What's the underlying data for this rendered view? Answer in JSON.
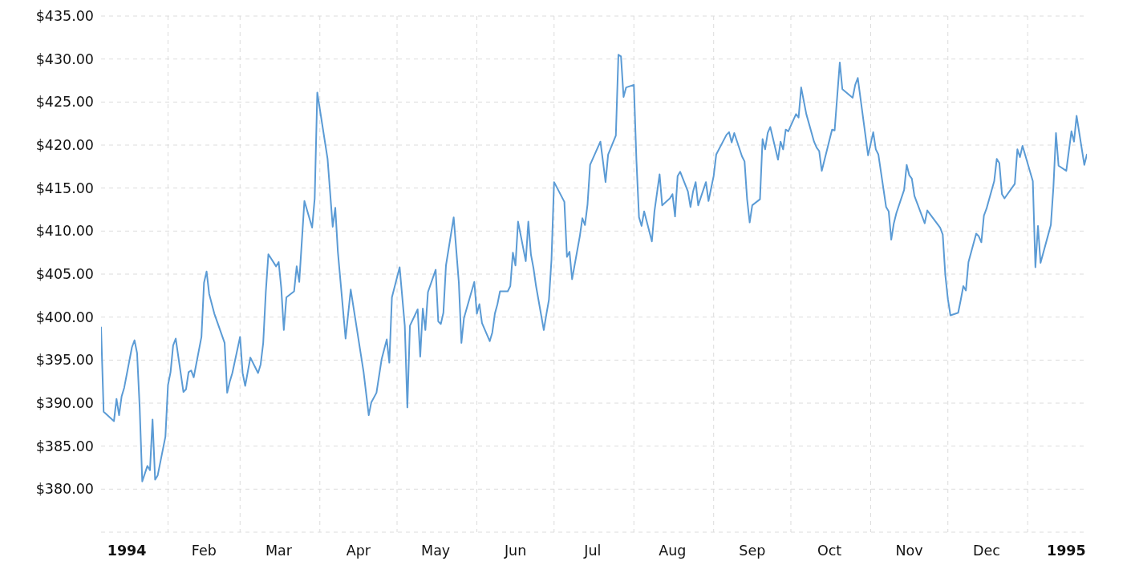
{
  "chart_data": {
    "type": "line",
    "x": [
      "1994-01-06",
      "1994-01-07",
      "1994-01-11",
      "1994-01-12",
      "1994-01-13",
      "1994-01-14",
      "1994-01-15",
      "1994-01-18",
      "1994-01-19",
      "1994-01-20",
      "1994-01-21",
      "1994-01-22",
      "1994-01-24",
      "1994-01-25",
      "1994-01-26",
      "1994-01-27",
      "1994-01-28",
      "1994-01-31",
      "1994-02-01",
      "1994-02-02",
      "1994-02-03",
      "1994-02-04",
      "1994-02-07",
      "1994-02-08",
      "1994-02-09",
      "1994-02-10",
      "1994-02-11",
      "1994-02-14",
      "1994-02-15",
      "1994-02-16",
      "1994-02-17",
      "1994-02-19",
      "1994-02-23",
      "1994-02-24",
      "1994-02-25",
      "1994-02-26",
      "1994-03-01",
      "1994-03-02",
      "1994-03-03",
      "1994-03-05",
      "1994-03-08",
      "1994-03-09",
      "1994-03-10",
      "1994-03-11",
      "1994-03-12",
      "1994-03-15",
      "1994-03-16",
      "1994-03-17",
      "1994-03-18",
      "1994-03-19",
      "1994-03-22",
      "1994-03-23",
      "1994-03-24",
      "1994-03-26",
      "1994-03-29",
      "1994-03-30",
      "1994-03-31",
      "1994-04-04",
      "1994-04-06",
      "1994-04-07",
      "1994-04-08",
      "1994-04-11",
      "1994-04-13",
      "1994-04-18",
      "1994-04-20",
      "1994-04-21",
      "1994-04-23",
      "1994-04-25",
      "1994-04-27",
      "1994-04-28",
      "1994-04-29",
      "1994-05-02",
      "1994-05-04",
      "1994-05-05",
      "1994-05-06",
      "1994-05-09",
      "1994-05-10",
      "1994-05-11",
      "1994-05-12",
      "1994-05-13",
      "1994-05-16",
      "1994-05-17",
      "1994-05-18",
      "1994-05-19",
      "1994-05-20",
      "1994-05-23",
      "1994-05-24",
      "1994-05-25",
      "1994-05-26",
      "1994-05-27",
      "1994-05-31",
      "1994-06-01",
      "1994-06-02",
      "1994-06-03",
      "1994-06-06",
      "1994-06-07",
      "1994-06-08",
      "1994-06-09",
      "1994-06-10",
      "1994-06-13",
      "1994-06-14",
      "1994-06-15",
      "1994-06-16",
      "1994-06-17",
      "1994-06-20",
      "1994-06-21",
      "1994-06-22",
      "1994-06-23",
      "1994-06-24",
      "1994-06-27",
      "1994-06-28",
      "1994-06-29",
      "1994-06-30",
      "1994-07-01",
      "1994-07-05",
      "1994-07-06",
      "1994-07-07",
      "1994-07-08",
      "1994-07-11",
      "1994-07-12",
      "1994-07-13",
      "1994-07-14",
      "1994-07-15",
      "1994-07-19",
      "1994-07-20",
      "1994-07-21",
      "1994-07-22",
      "1994-07-25",
      "1994-07-26",
      "1994-07-27",
      "1994-07-28",
      "1994-07-29",
      "1994-08-01",
      "1994-08-02",
      "1994-08-03",
      "1994-08-04",
      "1994-08-05",
      "1994-08-08",
      "1994-08-09",
      "1994-08-11",
      "1994-08-12",
      "1994-08-15",
      "1994-08-16",
      "1994-08-17",
      "1994-08-18",
      "1994-08-19",
      "1994-08-22",
      "1994-08-23",
      "1994-08-24",
      "1994-08-25",
      "1994-08-26",
      "1994-08-29",
      "1994-08-30",
      "1994-09-01",
      "1994-09-02",
      "1994-09-06",
      "1994-09-07",
      "1994-09-08",
      "1994-09-09",
      "1994-09-12",
      "1994-09-13",
      "1994-09-14",
      "1994-09-15",
      "1994-09-16",
      "1994-09-19",
      "1994-09-20",
      "1994-09-21",
      "1994-09-22",
      "1994-09-23",
      "1994-09-26",
      "1994-09-27",
      "1994-09-28",
      "1994-09-29",
      "1994-09-30",
      "1994-10-03",
      "1994-10-04",
      "1994-10-05",
      "1994-10-07",
      "1994-10-10",
      "1994-10-11",
      "1994-10-12",
      "1994-10-13",
      "1994-10-17",
      "1994-10-18",
      "1994-10-20",
      "1994-10-21",
      "1994-10-25",
      "1994-10-26",
      "1994-10-27",
      "1994-10-31",
      "1994-11-02",
      "1994-11-03",
      "1994-11-04",
      "1994-11-07",
      "1994-11-08",
      "1994-11-09",
      "1994-11-10",
      "1994-11-11",
      "1994-11-14",
      "1994-11-15",
      "1994-11-16",
      "1994-11-17",
      "1994-11-18",
      "1994-11-22",
      "1994-11-23",
      "1994-11-28",
      "1994-11-29",
      "1994-11-30",
      "1994-12-01",
      "1994-12-02",
      "1994-12-05",
      "1994-12-06",
      "1994-12-07",
      "1994-12-08",
      "1994-12-09",
      "1994-12-12",
      "1994-12-13",
      "1994-12-14",
      "1994-12-15",
      "1994-12-16",
      "1994-12-19",
      "1994-12-20",
      "1994-12-21",
      "1994-12-22",
      "1994-12-23",
      "1994-12-27",
      "1994-12-28",
      "1994-12-29",
      "1994-12-30",
      "1995-01-03",
      "1995-01-04",
      "1995-01-05",
      "1995-01-06",
      "1995-01-09",
      "1995-01-10",
      "1995-01-11",
      "1995-01-12",
      "1995-01-13",
      "1995-01-16",
      "1995-01-18",
      "1995-01-19",
      "1995-01-20",
      "1995-01-23",
      "1995-01-24"
    ],
    "values": [
      398.8,
      389.0,
      387.9,
      390.5,
      388.6,
      390.8,
      391.8,
      396.5,
      397.3,
      395.8,
      389.5,
      380.9,
      382.7,
      382.2,
      388.1,
      381.1,
      381.6,
      386.1,
      392.1,
      393.6,
      396.7,
      397.5,
      391.3,
      391.6,
      393.6,
      393.8,
      393.0,
      397.7,
      404.0,
      405.3,
      402.7,
      400.4,
      397.0,
      391.2,
      392.5,
      393.5,
      397.7,
      393.5,
      392.0,
      395.3,
      393.5,
      394.5,
      397.0,
      402.9,
      407.3,
      405.9,
      406.4,
      403.4,
      398.5,
      402.3,
      403.0,
      405.9,
      404.1,
      413.5,
      410.4,
      413.8,
      426.1,
      418.4,
      410.5,
      412.7,
      407.6,
      397.5,
      403.2,
      393.6,
      388.6,
      390.1,
      391.2,
      395.1,
      397.4,
      394.7,
      402.3,
      405.8,
      399.0,
      389.5,
      399.0,
      400.9,
      395.4,
      401.0,
      398.5,
      402.9,
      405.5,
      399.5,
      399.2,
      400.5,
      406.0,
      411.6,
      407.8,
      404.0,
      397.0,
      399.9,
      404.1,
      400.4,
      401.5,
      399.3,
      397.2,
      398.2,
      400.4,
      401.5,
      403.0,
      403.0,
      403.6,
      407.5,
      406.0,
      411.1,
      406.5,
      411.1,
      407.3,
      405.7,
      403.6,
      398.5,
      400.3,
      402.0,
      406.7,
      415.7,
      413.4,
      407.0,
      407.6,
      404.4,
      409.4,
      411.5,
      410.7,
      413.1,
      417.7,
      420.4,
      418.1,
      415.7,
      418.9,
      421.1,
      430.5,
      430.3,
      425.6,
      426.7,
      427.0,
      418.2,
      411.6,
      410.6,
      412.3,
      408.8,
      412.3,
      416.6,
      413.0,
      413.8,
      414.3,
      411.7,
      416.4,
      416.9,
      414.6,
      412.8,
      414.6,
      415.7,
      413.0,
      415.7,
      413.5,
      416.4,
      418.9,
      421.2,
      421.5,
      420.3,
      421.4,
      418.7,
      418.1,
      413.7,
      411.0,
      413.0,
      413.7,
      420.7,
      419.5,
      421.4,
      422.1,
      418.3,
      420.4,
      419.5,
      421.8,
      421.6,
      423.6,
      423.2,
      426.7,
      423.6,
      420.4,
      419.7,
      419.3,
      417.0,
      421.8,
      421.7,
      429.6,
      426.5,
      425.5,
      427.0,
      427.8,
      418.8,
      421.5,
      419.5,
      418.9,
      412.8,
      412.3,
      409.0,
      410.9,
      412.1,
      414.8,
      417.7,
      416.5,
      416.1,
      414.1,
      410.9,
      412.4,
      410.4,
      409.6,
      404.9,
      402.1,
      400.2,
      400.5,
      402.0,
      403.6,
      403.1,
      406.4,
      409.7,
      409.4,
      408.7,
      411.8,
      412.6,
      415.8,
      418.4,
      417.9,
      414.3,
      413.8,
      415.5,
      419.5,
      418.6,
      419.9,
      415.8,
      405.8,
      410.6,
      406.3,
      409.6,
      410.7,
      415.1,
      421.4,
      417.6,
      417.0,
      421.6,
      420.4,
      423.4,
      417.7,
      418.9
    ],
    "color": "#5b9bd5",
    "xlim": [
      "1994-01-06",
      "1995-01-24"
    ],
    "xticks": [
      {
        "value": "1994-01-16",
        "label": "1994"
      },
      {
        "value": "1994-02-01",
        "label": null
      },
      {
        "value": "1994-02-15",
        "label": "Feb"
      },
      {
        "value": "1994-03-01",
        "label": null
      },
      {
        "value": "1994-03-16",
        "label": "Mar"
      },
      {
        "value": "1994-04-01",
        "label": null
      },
      {
        "value": "1994-04-16",
        "label": "Apr"
      },
      {
        "value": "1994-05-01",
        "label": null
      },
      {
        "value": "1994-05-16",
        "label": "May"
      },
      {
        "value": "1994-06-01",
        "label": null
      },
      {
        "value": "1994-06-16",
        "label": "Jun"
      },
      {
        "value": "1994-07-01",
        "label": null
      },
      {
        "value": "1994-07-16",
        "label": "Jul"
      },
      {
        "value": "1994-08-01",
        "label": null
      },
      {
        "value": "1994-08-16",
        "label": "Aug"
      },
      {
        "value": "1994-09-01",
        "label": null
      },
      {
        "value": "1994-09-16",
        "label": "Sep"
      },
      {
        "value": "1994-10-01",
        "label": null
      },
      {
        "value": "1994-10-16",
        "label": "Oct"
      },
      {
        "value": "1994-11-01",
        "label": null
      },
      {
        "value": "1994-11-16",
        "label": "Nov"
      },
      {
        "value": "1994-12-01",
        "label": null
      },
      {
        "value": "1994-12-16",
        "label": "Dec"
      },
      {
        "value": "1995-01-01",
        "label": null
      },
      {
        "value": "1995-01-16",
        "label": "1995"
      }
    ],
    "ylim": [
      375,
      435
    ],
    "yticks": [
      {
        "value": 375,
        "label": null
      },
      {
        "value": 380,
        "label": "$380.00"
      },
      {
        "value": 385,
        "label": "$385.00"
      },
      {
        "value": 390,
        "label": "$390.00"
      },
      {
        "value": 395,
        "label": "$395.00"
      },
      {
        "value": 400,
        "label": "$400.00"
      },
      {
        "value": 405,
        "label": "$405.00"
      },
      {
        "value": 410,
        "label": "$410.00"
      },
      {
        "value": 415,
        "label": "$415.00"
      },
      {
        "value": 420,
        "label": "$420.00"
      },
      {
        "value": 425,
        "label": "$425.00"
      },
      {
        "value": 430,
        "label": "$430.00"
      },
      {
        "value": 435,
        "label": "$435.00"
      }
    ],
    "grid": true
  }
}
